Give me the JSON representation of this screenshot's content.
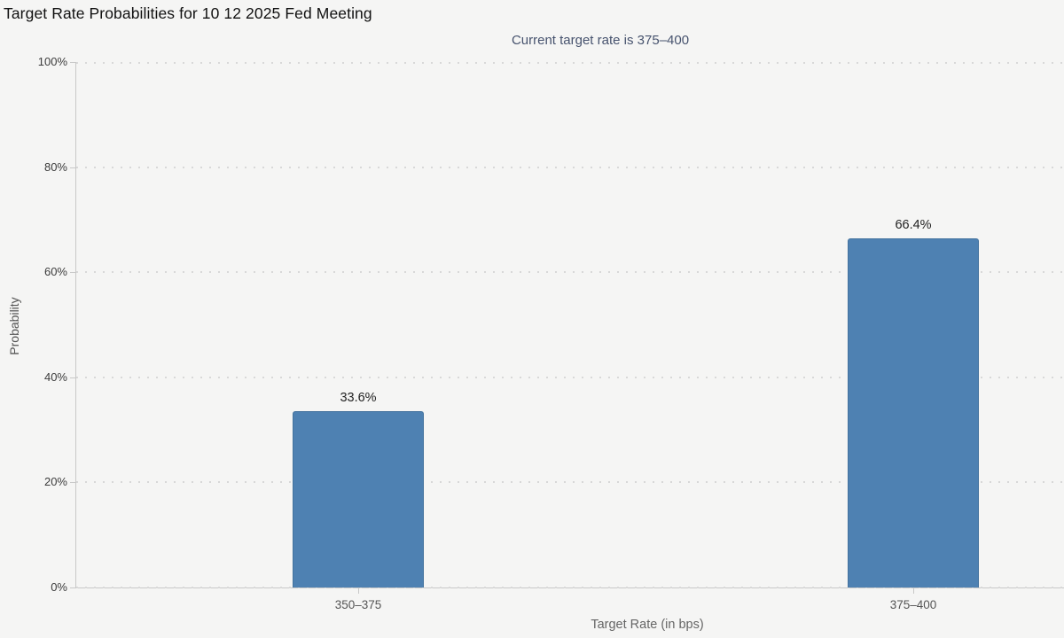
{
  "chart_data": {
    "type": "bar",
    "title": "Target Rate Probabilities for 10 12 2025 Fed Meeting",
    "subtitle": "Current target rate is 375–400",
    "categories": [
      "350–375",
      "375–400"
    ],
    "values": [
      33.6,
      66.4
    ],
    "value_labels": [
      "33.6%",
      "66.4%"
    ],
    "xlabel": "Target Rate (in bps)",
    "ylabel": "Probability",
    "ylim": [
      0,
      100
    ],
    "yticks": [
      0,
      20,
      40,
      60,
      80,
      100
    ],
    "ytick_labels": [
      "0%",
      "20%",
      "40%",
      "60%",
      "80%",
      "100%"
    ],
    "grid": "horizontal-dotted",
    "legend": "none",
    "colors": {
      "bar": "#4e81b2",
      "background": "#f5f5f4",
      "title": "#111111",
      "subtitle": "#47536e",
      "axis_line": "#c8c8c8",
      "gridline": "#d8d8d8",
      "tick_label": "#3c3c3c",
      "axis_title": "#666666"
    }
  }
}
